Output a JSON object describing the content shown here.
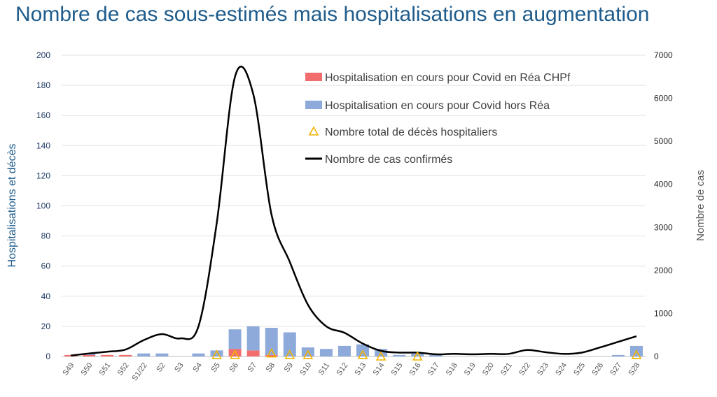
{
  "chart_data": {
    "type": "bar",
    "title": "Nombre de cas sous-estimés mais hospitalisations en augmentation",
    "ylabel_left": "Hospitalisations et décès",
    "ylabel_right": "Nombre de cas",
    "ylim_left": [
      0,
      200
    ],
    "ylim_right": [
      0,
      7000
    ],
    "yticks_left": [
      "0",
      "20",
      "40",
      "60",
      "80",
      "100",
      "120",
      "140",
      "160",
      "180",
      "200"
    ],
    "yticks_right": [
      "0",
      "1000",
      "2000",
      "3000",
      "4000",
      "5000",
      "6000",
      "7000"
    ],
    "grid": true,
    "legend_position": "top-right",
    "categories": [
      "S49",
      "S50",
      "S51",
      "S52",
      "S1/22",
      "S2",
      "S3",
      "S4",
      "S5",
      "S6",
      "S7",
      "S8",
      "S9",
      "S10",
      "S11",
      "S12",
      "S13",
      "S14",
      "S15",
      "S16",
      "S17",
      "S18",
      "S19",
      "S20",
      "S21",
      "S22",
      "S23",
      "S24",
      "S25",
      "S26",
      "S27",
      "S28"
    ],
    "series": [
      {
        "name": "Hospitalisation en cours pour Covid en Réa CHPf",
        "kind": "bar-stack",
        "axis": "left",
        "color": "#f26d6d",
        "values": [
          1,
          1,
          1,
          1,
          0,
          0,
          0,
          0,
          0,
          5,
          4,
          1,
          0,
          0,
          0,
          0,
          0,
          0,
          0,
          0,
          0,
          0,
          0,
          0,
          0,
          0,
          0,
          0,
          0,
          0,
          0,
          0
        ]
      },
      {
        "name": "Hospitalisation en cours pour Covid hors Réa",
        "kind": "bar-stack",
        "axis": "left",
        "color": "#8eaadb",
        "values": [
          0,
          1,
          0,
          0,
          2,
          2,
          0,
          2,
          4,
          13,
          16,
          18,
          16,
          6,
          5,
          7,
          8,
          5,
          1,
          2,
          1,
          0,
          0,
          0,
          0,
          0,
          0,
          0,
          0,
          0,
          1,
          7
        ]
      },
      {
        "name": "Nombre total de décès hospitaliers",
        "kind": "marker",
        "axis": "left",
        "color": "#f2b400",
        "values": [
          null,
          null,
          null,
          null,
          null,
          null,
          null,
          null,
          1,
          1,
          null,
          2,
          1,
          1,
          null,
          null,
          1,
          0,
          null,
          0,
          null,
          null,
          null,
          null,
          null,
          null,
          null,
          null,
          null,
          null,
          null,
          1
        ]
      },
      {
        "name": "Nombre de cas confirmés",
        "kind": "line",
        "axis": "right",
        "color": "#000000",
        "values": [
          20,
          70,
          110,
          160,
          380,
          520,
          420,
          700,
          3100,
          6500,
          6100,
          3300,
          2200,
          1200,
          700,
          550,
          300,
          130,
          90,
          90,
          50,
          60,
          50,
          60,
          60,
          150,
          100,
          60,
          90,
          210,
          340,
          470
        ]
      }
    ]
  }
}
